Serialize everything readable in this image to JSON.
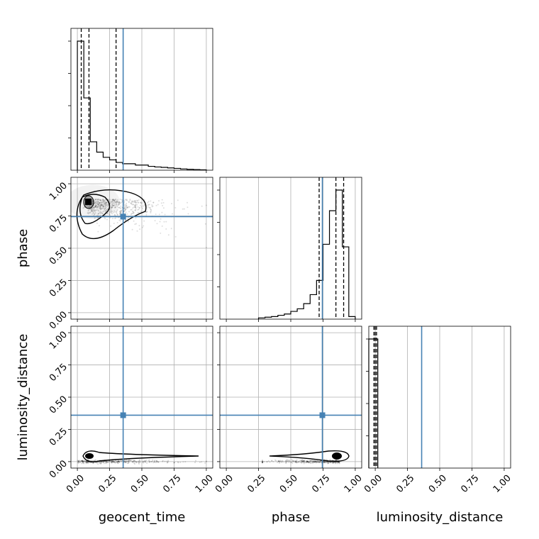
{
  "chart_data": {
    "type": "corner",
    "parameters": [
      "geocent_time",
      "phase",
      "luminosity_distance"
    ],
    "axis_labels": {
      "x": [
        "geocent_time",
        "phase",
        "luminosity_distance"
      ],
      "y": [
        "phase",
        "luminosity_distance"
      ]
    },
    "tick_values": [
      0.0,
      0.25,
      0.5,
      0.75,
      1.0
    ],
    "tick_labels": [
      "0.00",
      "0.25",
      "0.50",
      "0.75",
      "1.00"
    ],
    "ranges": [
      [
        -0.05,
        1.05
      ],
      [
        -0.05,
        1.05
      ],
      [
        -0.05,
        1.05
      ]
    ],
    "truths": [
      0.355,
      0.745,
      0.36
    ],
    "quantiles": [
      [
        0.03,
        0.09,
        0.3
      ],
      [
        0.72,
        0.85,
        0.91
      ],
      [
        -0.01,
        0.0,
        0.01
      ]
    ],
    "histograms": [
      {
        "bin_edges": [
          0.0,
          0.05,
          0.1,
          0.15,
          0.2,
          0.25,
          0.3,
          0.35,
          0.4,
          0.45,
          0.5,
          0.55,
          0.6,
          0.65,
          0.7,
          0.75,
          0.8,
          0.85,
          0.9,
          0.95,
          1.0
        ],
        "counts": [
          1.0,
          0.56,
          0.22,
          0.14,
          0.1,
          0.08,
          0.06,
          0.05,
          0.05,
          0.04,
          0.04,
          0.03,
          0.025,
          0.022,
          0.018,
          0.014,
          0.01,
          0.007,
          0.005,
          0.003
        ]
      },
      {
        "bin_edges": [
          0.25,
          0.3,
          0.35,
          0.4,
          0.45,
          0.5,
          0.55,
          0.6,
          0.65,
          0.7,
          0.75,
          0.8,
          0.85,
          0.9,
          0.95,
          1.0
        ],
        "counts": [
          0.01,
          0.015,
          0.02,
          0.03,
          0.04,
          0.06,
          0.08,
          0.12,
          0.19,
          0.3,
          0.58,
          0.84,
          1.0,
          0.56,
          0.02
        ]
      },
      {
        "bin_edges": [
          -0.05,
          0.0,
          0.02
        ],
        "counts": [
          1.0,
          1.0
        ]
      }
    ],
    "scatter_2d": {
      "x_center": 0.05,
      "y_center": 0.9,
      "x_spread": 0.32,
      "y_spread": 0.16
    },
    "grid": true
  }
}
